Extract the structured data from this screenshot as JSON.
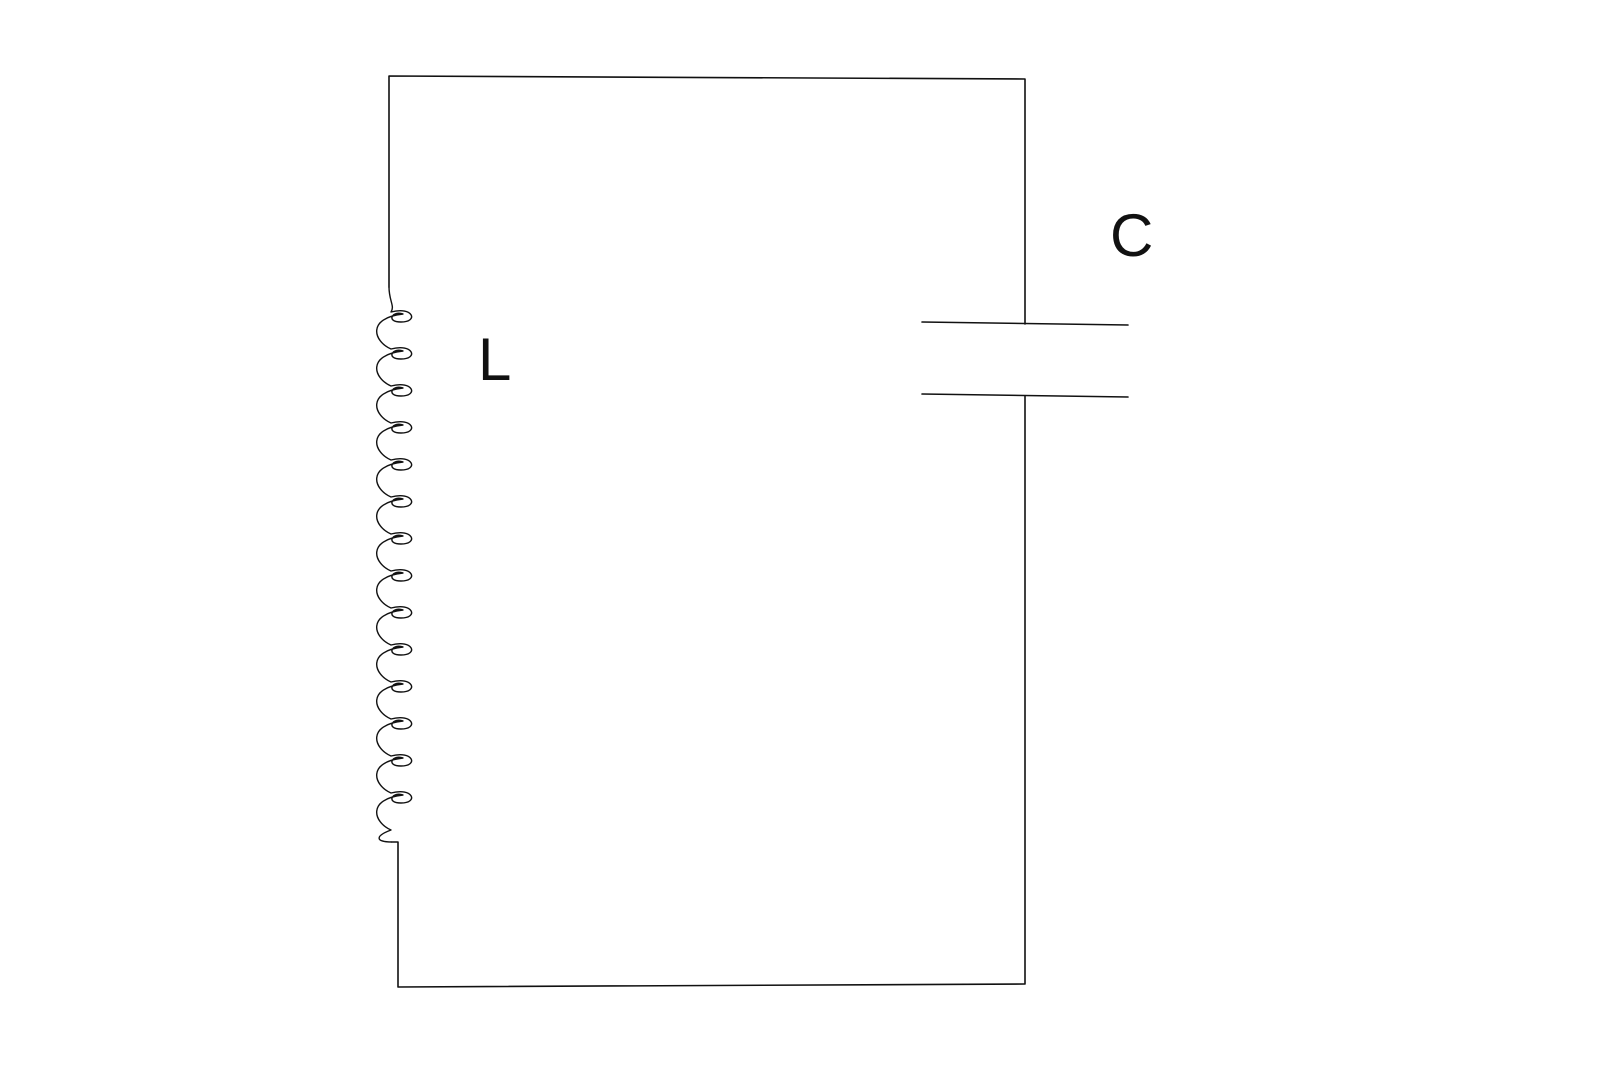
{
  "diagram": {
    "type": "LC circuit",
    "components": [
      {
        "id": "inductor",
        "symbol": "inductor-coil",
        "label": "L"
      },
      {
        "id": "capacitor",
        "symbol": "parallel-plate-capacitor",
        "label": "C"
      }
    ],
    "inductor_turns": 14,
    "line_color": "#111111",
    "background_color": "#ffffff"
  }
}
